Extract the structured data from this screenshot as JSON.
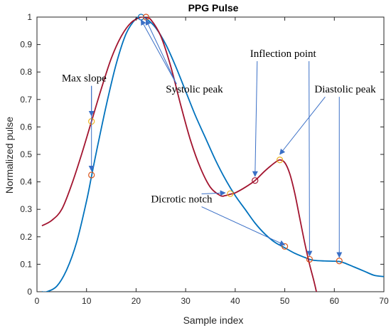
{
  "chart_data": {
    "type": "line",
    "title": "PPG Pulse",
    "xlabel": "Sample index",
    "ylabel": "Normalized pulse",
    "xlim": [
      0,
      70
    ],
    "ylim": [
      0,
      1
    ],
    "xticks": [
      0,
      10,
      20,
      30,
      40,
      50,
      60,
      70
    ],
    "yticks": [
      0,
      0.1,
      0.2,
      0.3,
      0.4,
      0.5,
      0.6,
      0.7,
      0.8,
      0.9,
      1
    ],
    "grid": false,
    "series": [
      {
        "color": "#0072BD",
        "x": [
          1,
          2,
          4,
          6,
          8,
          10,
          11,
          12,
          14,
          16,
          18,
          20,
          21,
          22,
          24,
          26,
          28,
          30,
          32,
          34,
          36,
          38,
          40,
          42,
          44,
          46,
          48,
          50,
          52,
          54,
          55,
          56,
          58,
          60,
          61,
          62,
          64,
          66,
          68,
          70
        ],
        "y": [
          0,
          0.0,
          0.02,
          0.08,
          0.18,
          0.33,
          0.42,
          0.51,
          0.68,
          0.83,
          0.94,
          0.995,
          1.0,
          0.995,
          0.96,
          0.9,
          0.82,
          0.73,
          0.64,
          0.56,
          0.48,
          0.41,
          0.35,
          0.3,
          0.25,
          0.21,
          0.18,
          0.16,
          0.14,
          0.125,
          0.118,
          0.114,
          0.112,
          0.111,
          0.11,
          0.105,
          0.09,
          0.075,
          0.06,
          0.055
        ]
      },
      {
        "color": "#A2142F",
        "x": [
          1,
          3,
          5,
          7,
          9,
          11,
          13,
          15,
          17,
          19,
          21,
          22,
          23,
          25,
          27,
          29,
          31,
          33,
          35,
          37,
          38,
          39,
          40,
          42,
          44,
          46,
          48,
          49,
          50,
          51,
          52,
          53,
          54,
          55,
          56,
          57
        ],
        "y": [
          0.24,
          0.26,
          0.3,
          0.39,
          0.5,
          0.62,
          0.74,
          0.85,
          0.93,
          0.98,
          1.0,
          0.998,
          0.99,
          0.93,
          0.82,
          0.68,
          0.55,
          0.45,
          0.38,
          0.35,
          0.35,
          0.355,
          0.36,
          0.38,
          0.405,
          0.44,
          0.47,
          0.48,
          0.47,
          0.43,
          0.36,
          0.27,
          0.18,
          0.1,
          0.03,
          -0.05
        ]
      }
    ],
    "markers": [
      {
        "x": 11,
        "y": 0.62,
        "color": "#EDB120"
      },
      {
        "x": 11,
        "y": 0.425,
        "color": "#D95319"
      },
      {
        "x": 21,
        "y": 1.0,
        "color": "#0072BD"
      },
      {
        "x": 22,
        "y": 1.0,
        "color": "#D95319"
      },
      {
        "x": 39,
        "y": 0.357,
        "color": "#EDB120"
      },
      {
        "x": 44,
        "y": 0.405,
        "color": "#A2142F"
      },
      {
        "x": 49,
        "y": 0.48,
        "color": "#EDB120"
      },
      {
        "x": 50,
        "y": 0.165,
        "color": "#D95319"
      },
      {
        "x": 55,
        "y": 0.118,
        "color": "#D95319"
      },
      {
        "x": 61,
        "y": 0.112,
        "color": "#D95319"
      }
    ],
    "annotations": [
      {
        "text": "Max slope",
        "tx": 5,
        "ty": 0.765,
        "targets": [
          [
            11,
            0.64
          ],
          [
            11,
            0.44
          ]
        ]
      },
      {
        "text": "Systolic peak",
        "tx": 26,
        "ty": 0.725,
        "targets": [
          [
            21,
            0.99
          ],
          [
            22,
            0.99
          ]
        ]
      },
      {
        "text": "Inflection point",
        "tx": 43,
        "ty": 0.855,
        "targets": [
          [
            44,
            0.42
          ],
          [
            55,
            0.13
          ]
        ]
      },
      {
        "text": "Diastolic peak",
        "tx": 56,
        "ty": 0.725,
        "targets": [
          [
            49,
            0.5
          ],
          [
            61,
            0.125
          ]
        ]
      },
      {
        "text": "Dicrotic notch",
        "tx": 23,
        "ty": 0.325,
        "targets": [
          [
            38,
            0.36
          ],
          [
            50,
            0.17
          ]
        ]
      }
    ]
  }
}
